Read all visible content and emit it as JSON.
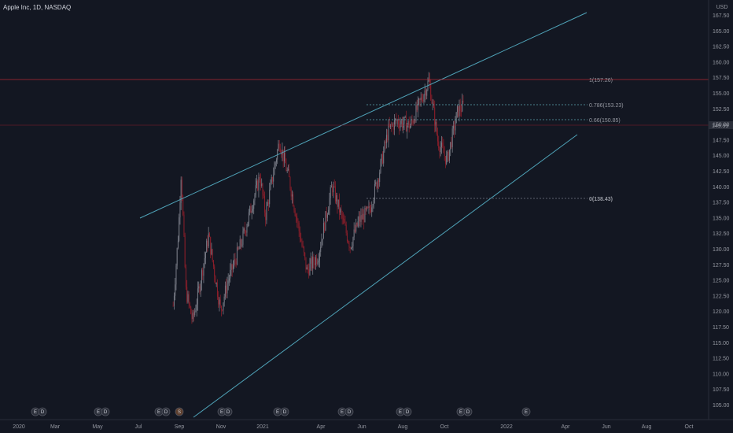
{
  "header": {
    "title": "Apple Inc, 1D, NASDAQ"
  },
  "price_axis": {
    "currency": "USD",
    "ticks": [
      "167.50",
      "165.00",
      "162.50",
      "160.00",
      "157.50",
      "155.00",
      "152.50",
      "150.00",
      "147.50",
      "145.00",
      "142.50",
      "140.00",
      "137.50",
      "135.00",
      "132.50",
      "130.00",
      "127.50",
      "125.00",
      "122.50",
      "120.00",
      "117.50",
      "115.00",
      "112.50",
      "110.00",
      "107.50",
      "105.00"
    ],
    "last_price_label": "149.99"
  },
  "time_axis": {
    "labels": [
      "2020",
      "Mar",
      "May",
      "Jul",
      "Sep",
      "Nov",
      "2021",
      "Apr",
      "Jun",
      "Aug",
      "Oct",
      "2022",
      "Apr",
      "Jun",
      "Aug",
      "Oct"
    ]
  },
  "fib_levels": [
    {
      "label": "1(157.26)",
      "color": "#b22833"
    },
    {
      "label": "0.786(153.23)",
      "color": "#5ba3ad"
    },
    {
      "label": "0.66(150.85)",
      "color": "#5ba3ad"
    },
    {
      "label": "0(138.43)",
      "color": "#d1d4dc"
    }
  ],
  "event_badges": [
    {
      "text": "E",
      "kind": "earnings"
    },
    {
      "text": "D",
      "kind": "dividend"
    },
    {
      "text": "E",
      "kind": "earnings"
    },
    {
      "text": "D",
      "kind": "dividend"
    },
    {
      "text": "E",
      "kind": "earnings"
    },
    {
      "text": "D",
      "kind": "dividend"
    },
    {
      "text": "S",
      "kind": "split"
    },
    {
      "text": "E",
      "kind": "earnings"
    },
    {
      "text": "D",
      "kind": "dividend"
    },
    {
      "text": "E",
      "kind": "earnings"
    },
    {
      "text": "D",
      "kind": "dividend"
    },
    {
      "text": "E",
      "kind": "earnings"
    },
    {
      "text": "D",
      "kind": "dividend"
    },
    {
      "text": "E",
      "kind": "earnings"
    },
    {
      "text": "D",
      "kind": "dividend"
    },
    {
      "text": "E",
      "kind": "earnings"
    },
    {
      "text": "D",
      "kind": "dividend"
    },
    {
      "text": "E",
      "kind": "earnings"
    }
  ],
  "colors": {
    "background": "#131722",
    "up": "#787b86",
    "down": "#8b1e2a",
    "trendline": "#4fa3b8",
    "fib_top": "#b22833",
    "fib_mid": "#5ba3ad"
  },
  "chart_data": {
    "type": "candlestick",
    "symbol": "AAPL",
    "interval": "1D",
    "ylim": [
      104,
      168
    ],
    "close_path": [
      {
        "x": "2020-08-20",
        "y": 110
      },
      {
        "x": "2020-08-28",
        "y": 125
      },
      {
        "x": "2020-09-01",
        "y": 137
      },
      {
        "x": "2020-09-08",
        "y": 113
      },
      {
        "x": "2020-09-18",
        "y": 107
      },
      {
        "x": "2020-09-23",
        "y": 110
      },
      {
        "x": "2020-10-12",
        "y": 124
      },
      {
        "x": "2020-10-30",
        "y": 109
      },
      {
        "x": "2020-11-10",
        "y": 115
      },
      {
        "x": "2020-12-01",
        "y": 123
      },
      {
        "x": "2020-12-28",
        "y": 136
      },
      {
        "x": "2021-01-05",
        "y": 128
      },
      {
        "x": "2021-01-26",
        "y": 143
      },
      {
        "x": "2021-02-10",
        "y": 135
      },
      {
        "x": "2021-03-08",
        "y": 117
      },
      {
        "x": "2021-03-25",
        "y": 120
      },
      {
        "x": "2021-04-15",
        "y": 134
      },
      {
        "x": "2021-05-12",
        "y": 122
      },
      {
        "x": "2021-05-25",
        "y": 127
      },
      {
        "x": "2021-06-10",
        "y": 129
      },
      {
        "x": "2021-06-25",
        "y": 137
      },
      {
        "x": "2021-07-08",
        "y": 145
      },
      {
        "x": "2021-07-20",
        "y": 147
      },
      {
        "x": "2021-08-10",
        "y": 146
      },
      {
        "x": "2021-09-07",
        "y": 155
      },
      {
        "x": "2021-09-20",
        "y": 143
      },
      {
        "x": "2021-10-04",
        "y": 139
      },
      {
        "x": "2021-10-20",
        "y": 149
      },
      {
        "x": "2021-10-29",
        "y": 150
      }
    ]
  }
}
